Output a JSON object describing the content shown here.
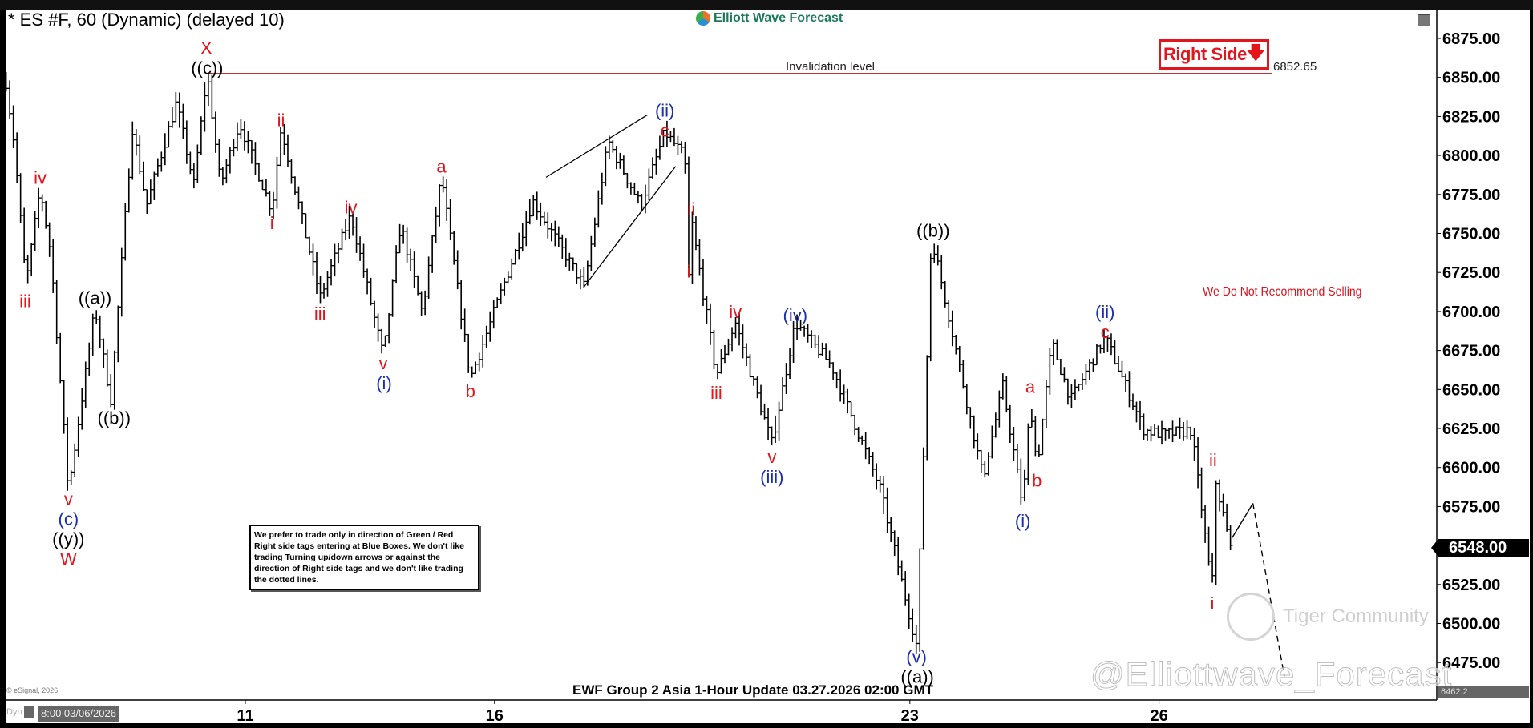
{
  "window": {
    "title": "* ES #F, 60 (Dynamic) (delayed 10)",
    "brand": "Elliott Wave Forecast",
    "right_side_tag": "Right Side",
    "right_side_arrow": "down-arrow-icon",
    "invalidation_label": "Invalidation level",
    "invalidation_value": "6852.65",
    "recommendation": "We Do Not Recommend Selling",
    "notice": "We prefer to trade only in direction of Green / Red Right side tags entering at Blue Boxes. We don't like trading Turning up/down arrows or against the direction of Right side tags and we don't like trading the dotted lines.",
    "footer": "EWF Group 2 Asia 1-Hour Update 03.27.2026 02:00 GMT",
    "copyright": "© eSignal, 2026",
    "mode": "Dyn",
    "cursor_time": "8:00 03/06/2026",
    "last_price": "6548.00",
    "low_marker": "6462.2",
    "watermark_community": "Tiger Community",
    "watermark_handle": "@Elliottwave_Forecast"
  },
  "colors": {
    "red": "#e3141c",
    "blue": "#1a2fb0",
    "black": "#000000",
    "brand": "#1b7a5a"
  },
  "chart_data": {
    "type": "ohlc",
    "symbol": "ES #F",
    "interval": "60",
    "ylim": [
      6462,
      6890
    ],
    "yticks": [
      "6875.00",
      "6850.00",
      "6825.00",
      "6800.00",
      "6775.00",
      "6750.00",
      "6725.00",
      "6700.00",
      "6675.00",
      "6650.00",
      "6625.00",
      "6600.00",
      "6575.00",
      "6550.00",
      "6525.00",
      "6500.00",
      "6475.00"
    ],
    "xticks": [
      {
        "label": "11",
        "day": 11
      },
      {
        "label": "16",
        "day": 16
      },
      {
        "label": "23",
        "day": 23
      },
      {
        "label": "26",
        "day": 26
      }
    ],
    "weekends": [
      [
        7,
        9
      ],
      [
        14,
        16
      ],
      [
        21,
        23
      ]
    ],
    "price_path": [
      [
        6.12,
        6847
      ],
      [
        6.22,
        6806
      ],
      [
        6.36,
        6717
      ],
      [
        6.53,
        6779
      ],
      [
        6.66,
        6736
      ],
      [
        6.72,
        6693
      ],
      [
        6.87,
        6585
      ],
      [
        9.19,
        6702
      ],
      [
        9.38,
        6643
      ],
      [
        9.64,
        6818
      ],
      [
        9.81,
        6768
      ],
      [
        10.17,
        6834
      ],
      [
        10.38,
        6781
      ],
      [
        10.54,
        6852.65
      ],
      [
        10.7,
        6781
      ],
      [
        10.93,
        6821
      ],
      [
        11.32,
        6765
      ],
      [
        11.43,
        6818
      ],
      [
        11.9,
        6709
      ],
      [
        12.27,
        6762
      ],
      [
        12.66,
        6671
      ],
      [
        12.87,
        6756
      ],
      [
        13.13,
        6699
      ],
      [
        13.36,
        6787
      ],
      [
        13.71,
        6657
      ],
      [
        16.35,
        6753
      ],
      [
        16.46,
        6771
      ],
      [
        17.08,
        6716
      ],
      [
        17.37,
        6809
      ],
      [
        17.76,
        6768
      ],
      [
        18.05,
        6815
      ],
      [
        18.29,
        6799
      ],
      [
        18.34,
        6718
      ],
      [
        18.37,
        6759
      ],
      [
        18.67,
        6659
      ],
      [
        18.9,
        6693
      ],
      [
        19.34,
        6615
      ],
      [
        19.62,
        6693
      ],
      [
        20.06,
        6665
      ],
      [
        20.64,
        6587
      ],
      [
        23.08,
        6486
      ],
      [
        23.26,
        6749
      ],
      [
        23.45,
        6702
      ],
      [
        23.88,
        6593
      ],
      [
        24.12,
        6652
      ],
      [
        24.36,
        6575
      ],
      [
        24.45,
        6643
      ],
      [
        24.53,
        6600
      ],
      [
        24.71,
        6680
      ],
      [
        24.94,
        6643
      ],
      [
        25.35,
        6684
      ],
      [
        25.82,
        6624
      ],
      [
        26.06,
        6621
      ],
      [
        26.39,
        6624
      ],
      [
        26.64,
        6521
      ],
      [
        26.66,
        6597
      ],
      [
        26.86,
        6548
      ]
    ],
    "invalidation_level": 6852.65,
    "wave_labels": [
      {
        "text": "X",
        "color": "red",
        "day": 10.53,
        "price": 6869
      },
      {
        "text": "((c))",
        "color": "black",
        "day": 10.54,
        "price": 6858
      },
      {
        "text": "iv",
        "color": "red",
        "day": 6.53,
        "price": 6786
      },
      {
        "text": "iii",
        "color": "red",
        "day": 6.35,
        "price": 6707
      },
      {
        "text": "((a))",
        "color": "black",
        "day": 9.19,
        "price": 6709
      },
      {
        "text": "((b))",
        "color": "black",
        "day": 9.42,
        "price": 6632
      },
      {
        "text": "v",
        "color": "red",
        "day": 6.87,
        "price": 6580
      },
      {
        "text": "(c)",
        "color": "blue",
        "day": 6.87,
        "price": 6571
      },
      {
        "text": "((y))",
        "color": "black",
        "day": 6.87,
        "price": 6558
      },
      {
        "text": "W",
        "color": "red",
        "day": 6.87,
        "price": 6545
      },
      {
        "text": "ii",
        "color": "red",
        "day": 11.43,
        "price": 6823
      },
      {
        "text": "i",
        "color": "red",
        "day": 11.32,
        "price": 6757
      },
      {
        "text": "iv",
        "color": "red",
        "day": 12.27,
        "price": 6767
      },
      {
        "text": "iii",
        "color": "red",
        "day": 11.9,
        "price": 6699
      },
      {
        "text": "v",
        "color": "red",
        "day": 12.66,
        "price": 6667
      },
      {
        "text": "(i)",
        "color": "blue",
        "day": 12.67,
        "price": 6657
      },
      {
        "text": "a",
        "color": "red",
        "day": 13.36,
        "price": 6793
      },
      {
        "text": "b",
        "color": "red",
        "day": 13.71,
        "price": 6649
      },
      {
        "text": "(ii)",
        "color": "blue",
        "day": 18.05,
        "price": 6829
      },
      {
        "text": "c",
        "color": "red",
        "day": 18.05,
        "price": 6819
      },
      {
        "text": "ii",
        "color": "red",
        "day": 18.37,
        "price": 6766
      },
      {
        "text": "i",
        "color": "red",
        "day": 18.34,
        "price": 6726
      },
      {
        "text": "iv",
        "color": "red",
        "day": 18.9,
        "price": 6700
      },
      {
        "text": "iii",
        "color": "red",
        "day": 18.67,
        "price": 6648
      },
      {
        "text": "(iv)",
        "color": "blue",
        "day": 19.62,
        "price": 6698
      },
      {
        "text": "v",
        "color": "red",
        "day": 19.34,
        "price": 6607
      },
      {
        "text": "(iii)",
        "color": "blue",
        "day": 19.34,
        "price": 6596
      },
      {
        "text": "((b))",
        "color": "black",
        "day": 23.28,
        "price": 6752
      },
      {
        "text": "(v)",
        "color": "blue",
        "day": 23.08,
        "price": 6479
      },
      {
        "text": "((a))",
        "color": "black",
        "day": 23.09,
        "price": 6468
      },
      {
        "text": "a",
        "color": "red",
        "day": 24.45,
        "price": 6652
      },
      {
        "text": "b",
        "color": "red",
        "day": 24.53,
        "price": 6592
      },
      {
        "text": "(i)",
        "color": "blue",
        "day": 24.36,
        "price": 6566
      },
      {
        "text": "(ii)",
        "color": "blue",
        "day": 25.35,
        "price": 6700
      },
      {
        "text": "c",
        "color": "red",
        "day": 25.35,
        "price": 6690
      },
      {
        "text": "ii",
        "color": "red",
        "day": 26.65,
        "price": 6605
      },
      {
        "text": "i",
        "color": "red",
        "day": 26.64,
        "price": 6513
      }
    ],
    "trendlines": [
      {
        "from": [
          16.62,
          6786
        ],
        "to": [
          17.84,
          6826
        ],
        "style": "solid"
      },
      {
        "from": [
          17.08,
          6716
        ],
        "to": [
          18.18,
          6793
        ],
        "style": "solid"
      }
    ],
    "projection": [
      {
        "from": [
          26.88,
          6555
        ],
        "to": [
          27.13,
          6577
        ],
        "style": "solid"
      },
      {
        "from": [
          27.13,
          6577
        ],
        "to": [
          27.51,
          6466
        ],
        "style": "dashed"
      }
    ]
  }
}
